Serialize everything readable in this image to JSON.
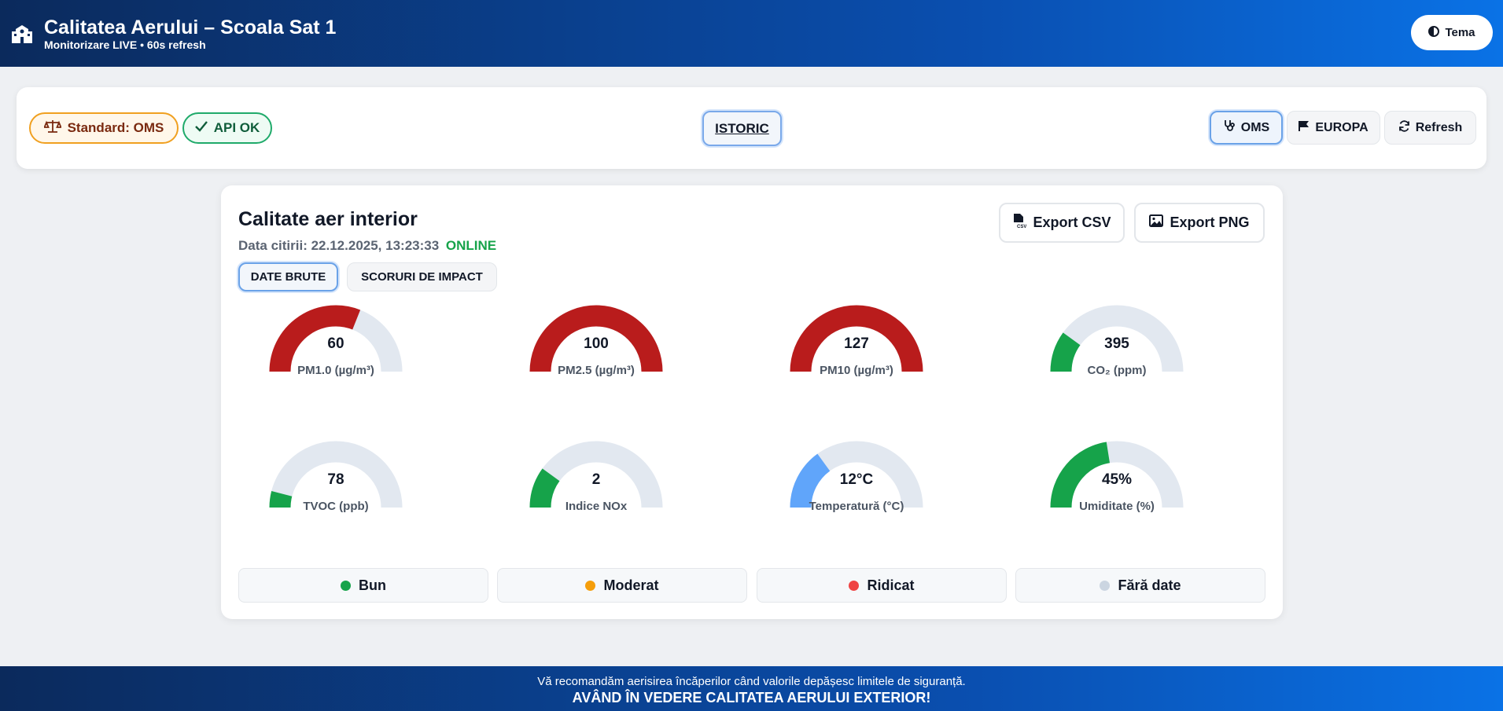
{
  "header": {
    "title": "Calitatea Aerului – Scoala Sat 1",
    "subtitle": "Monitorizare LIVE • 60s refresh",
    "theme_label": "Tema",
    "logo_icon": "school-building-icon"
  },
  "toolbar": {
    "standard_label": "Standard: OMS",
    "api_label": "API OK",
    "history_label": "ISTORIC",
    "oms_label": "OMS",
    "europa_label": "EUROPA",
    "refresh_label": "Refresh"
  },
  "card": {
    "title": "Calitate aer interior",
    "date_prefix": "Data citirii:",
    "date_value": "22.12.2025, 13:23:33",
    "status": "ONLINE",
    "export_csv": "Export CSV",
    "export_png": "Export PNG",
    "tabs": [
      "DATE BRUTE",
      "SCORURI DE IMPACT"
    ]
  },
  "gauges": [
    {
      "value": "60",
      "label": "PM1.0 (µg/m³)",
      "fill": 0.62,
      "color": "#b91c1c"
    },
    {
      "value": "100",
      "label": "PM2.5 (µg/m³)",
      "fill": 1.0,
      "color": "#b91c1c"
    },
    {
      "value": "127",
      "label": "PM10 (µg/m³)",
      "fill": 1.0,
      "color": "#b91c1c"
    },
    {
      "value": "395",
      "label": "CO₂ (ppm)",
      "fill": 0.2,
      "color": "#16a34a"
    },
    {
      "value": "78",
      "label": "TVOC (ppb)",
      "fill": 0.08,
      "color": "#16a34a"
    },
    {
      "value": "2",
      "label": "Indice NOx",
      "fill": 0.2,
      "color": "#16a34a"
    },
    {
      "value": "12°C",
      "label": "Temperatură (°C)",
      "fill": 0.3,
      "color": "#60a5fa"
    },
    {
      "value": "45%",
      "label": "Umiditate (%)",
      "fill": 0.45,
      "color": "#16a34a"
    }
  ],
  "legend": [
    {
      "label": "Bun",
      "color": "#16a34a"
    },
    {
      "label": "Moderat",
      "color": "#f59e0b"
    },
    {
      "label": "Ridicat",
      "color": "#ef4444"
    },
    {
      "label": "Fără date",
      "color": "#cbd5e1"
    }
  ],
  "footer": {
    "line1": "Vă recomandăm aerisirea încăperilor când valorile depășesc limitele de siguranță.",
    "line2": "AVÂND ÎN VEDERE CALITATEA AERULUI EXTERIOR!"
  }
}
